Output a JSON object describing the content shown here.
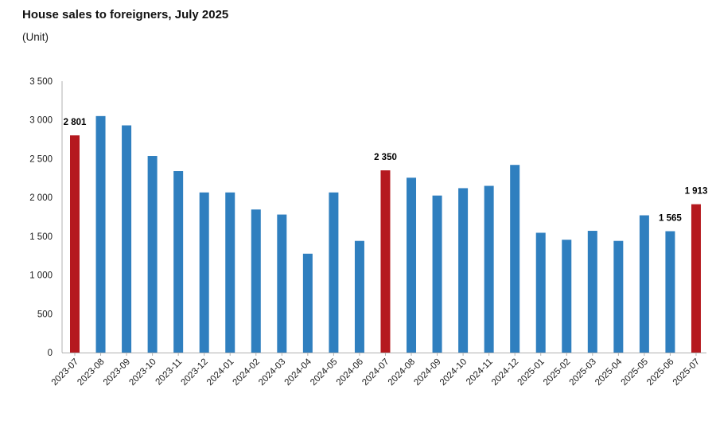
{
  "header": {
    "title": "House sales to foreigners, July 2025",
    "subtitle": "(Unit)"
  },
  "colors": {
    "default_bar": "#2f7fbf",
    "highlight_bar": "#b5191f",
    "axis": "#b0b0b0",
    "text": "#1a1a1a"
  },
  "chart_data": {
    "type": "bar",
    "title": "House sales to foreigners, July 2025",
    "subtitle": "(Unit)",
    "xlabel": "",
    "ylabel": "",
    "ylim": [
      0,
      3500
    ],
    "yticks": [
      0,
      500,
      1000,
      1500,
      2000,
      2500,
      3000,
      3500
    ],
    "ytick_labels": [
      "0",
      "500",
      "1 000",
      "1 500",
      "2 000",
      "2 500",
      "3 000",
      "3 500"
    ],
    "grid": false,
    "categories": [
      "2023-07",
      "2023-08",
      "2023-09",
      "2023-10",
      "2023-11",
      "2023-12",
      "2024-01",
      "2024-02",
      "2024-03",
      "2024-04",
      "2024-05",
      "2024-06",
      "2024-07",
      "2024-08",
      "2024-09",
      "2024-10",
      "2024-11",
      "2024-12",
      "2025-01",
      "2025-02",
      "2025-03",
      "2025-04",
      "2025-05",
      "2025-06",
      "2025-07"
    ],
    "values": [
      2801,
      3050,
      2930,
      2535,
      2340,
      2065,
      2065,
      1845,
      1780,
      1275,
      2065,
      1440,
      2350,
      2255,
      2025,
      2120,
      2150,
      2420,
      1545,
      1455,
      1570,
      1440,
      1770,
      1565,
      1913
    ],
    "highlighted": [
      "2023-07",
      "2024-07",
      "2025-07"
    ],
    "data_labels": [
      {
        "category": "2023-07",
        "text": "2 801"
      },
      {
        "category": "2024-07",
        "text": "2 350"
      },
      {
        "category": "2025-06",
        "text": "1 565"
      },
      {
        "category": "2025-07",
        "text": "1 913"
      }
    ]
  }
}
